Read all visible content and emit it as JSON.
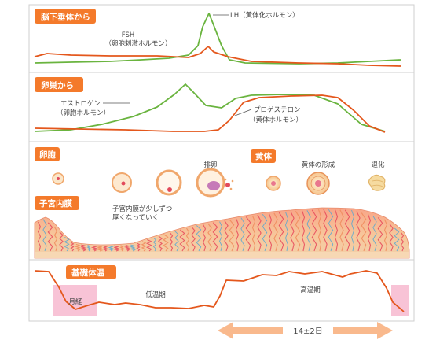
{
  "sections": {
    "pituitary": {
      "tag": "脳下垂体から",
      "lh_label": "LH（黄体化ホルモン）",
      "fsh_label_1": "FSH",
      "fsh_label_2": "（卵胞刺激ホルモン）"
    },
    "ovary": {
      "tag": "卵巣から",
      "estrogen_label_1": "エストロゲン",
      "estrogen_label_2": "（卵胞ホルモン）",
      "progesterone_label_1": "プロゲステロン",
      "progesterone_label_2": "（黄体ホルモン）"
    },
    "follicle": {
      "tag": "卵胞",
      "ovulation_label": "排卵",
      "corpus_tag": "黄体",
      "corpus_formation_label": "黄体の形成",
      "regression_label": "退化"
    },
    "endometrium": {
      "tag": "子宮内膜",
      "note_1": "子宮内膜が少しずつ",
      "note_2": "厚くなっていく"
    },
    "bbt": {
      "tag": "基礎体温",
      "menstruation_label": "月経",
      "low_label": "低温期",
      "high_label": "高温期"
    }
  },
  "cycle_arrow_label": "14±2日",
  "colors": {
    "tag_orange": "#f47a2b",
    "line_orange": "#e4571c",
    "line_green": "#6ab43f",
    "period_pink": "#f7b8cf",
    "arrow_peach": "#f9b98d"
  }
}
